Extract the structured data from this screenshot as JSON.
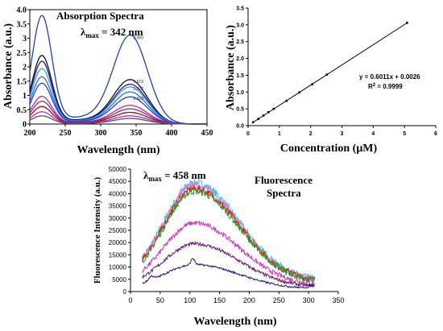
{
  "chart_data": [
    {
      "type": "line",
      "title": "Absorption Spectra",
      "annotation": {
        "lambda": "λ",
        "sub": "max",
        "value": " = 342 nm"
      },
      "xlabel": "Wavelength (nm)",
      "ylabel": "Absorbance (a.u.)",
      "xlim": [
        200,
        450
      ],
      "ylim": [
        0,
        4.0
      ],
      "xticks": [
        "200",
        "250",
        "300",
        "350",
        "400",
        "450"
      ],
      "yticks": [
        "0",
        "0.5",
        "1",
        "1.5",
        "2",
        "2.5",
        "3",
        "3.5",
        "4.0"
      ],
      "peak_labels": [
        "3.060",
        "1.519",
        "1.272",
        "0.929"
      ],
      "series": [
        {
          "color": "#1f3fc0",
          "peak1": 3.72,
          "peak2": 3.06
        },
        {
          "color": "#111111",
          "peak1": 2.35,
          "peak2": 1.52
        },
        {
          "color": "#1a1a8c",
          "peak1": 2.15,
          "peak2": 1.36
        },
        {
          "color": "#3399ff",
          "peak1": 1.9,
          "peak2": 1.27
        },
        {
          "color": "#2f6ed8",
          "peak1": 1.62,
          "peak2": 1.1
        },
        {
          "color": "#2244cc",
          "peak1": 1.4,
          "peak2": 0.93
        },
        {
          "color": "#d02090",
          "peak1": 0.95,
          "peak2": 0.64
        },
        {
          "color": "#7030a0",
          "peak1": 0.78,
          "peak2": 0.52
        },
        {
          "color": "#c00000",
          "peak1": 0.6,
          "peak2": 0.4
        },
        {
          "color": "#9932cc",
          "peak1": 0.42,
          "peak2": 0.28
        },
        {
          "color": "#555555",
          "peak1": 0.28,
          "peak2": 0.19
        }
      ]
    },
    {
      "type": "scatter",
      "xlabel": "Concentration (μM)",
      "ylabel": "Absorbance (a.u.)",
      "xlim": [
        0,
        6
      ],
      "ylim": [
        0,
        3.5
      ],
      "xticks": [
        "0",
        "1",
        "2",
        "3",
        "4",
        "5",
        "6"
      ],
      "yticks": [
        "0.0",
        "0.5",
        "1.0",
        "1.5",
        "2.0",
        "2.5",
        "3.0",
        "3.5"
      ],
      "points": [
        [
          0.16,
          0.1
        ],
        [
          0.33,
          0.2
        ],
        [
          0.49,
          0.3
        ],
        [
          0.65,
          0.4
        ],
        [
          0.82,
          0.5
        ],
        [
          1.23,
          0.74
        ],
        [
          1.64,
          0.99
        ],
        [
          2.05,
          1.23
        ],
        [
          2.52,
          1.52
        ],
        [
          5.08,
          3.06
        ]
      ],
      "equation": "y = 0.6011x + 0.0026",
      "r2_prefix": "R",
      "r2_sup": "2",
      "r2_value": " = 0.9999",
      "fit": {
        "slope": 0.6011,
        "intercept": 0.0026
      }
    },
    {
      "type": "line",
      "title": "Fluorescence\nSpectra",
      "title_lines": [
        "Fluorescence",
        "Spectra"
      ],
      "annotation": {
        "lambda": "λ",
        "sub": "max",
        "value": " = 458 nm"
      },
      "xlabel": "Wavelength (nm)",
      "ylabel": "Fluorescence Intensity (a.u.)",
      "xlim": [
        0,
        350
      ],
      "ylim": [
        0,
        50000
      ],
      "xticks": [
        "0",
        "50",
        "100",
        "150",
        "200",
        "250",
        "300",
        "350"
      ],
      "yticks": [
        "0",
        "5000",
        "10000",
        "15000",
        "20000",
        "25000",
        "30000",
        "35000",
        "40000",
        "45000",
        "50000"
      ],
      "series": [
        {
          "color": "#33ccff",
          "peak": 44500
        },
        {
          "color": "#ff66cc",
          "peak": 43500
        },
        {
          "color": "#cc2200",
          "peak": 42000
        },
        {
          "color": "#339933",
          "peak": 41000
        },
        {
          "color": "#cc33cc",
          "peak": 28000
        },
        {
          "color": "#661a66",
          "peak": 19500
        },
        {
          "color": "#1a1a80",
          "peak": 11000
        }
      ]
    }
  ]
}
